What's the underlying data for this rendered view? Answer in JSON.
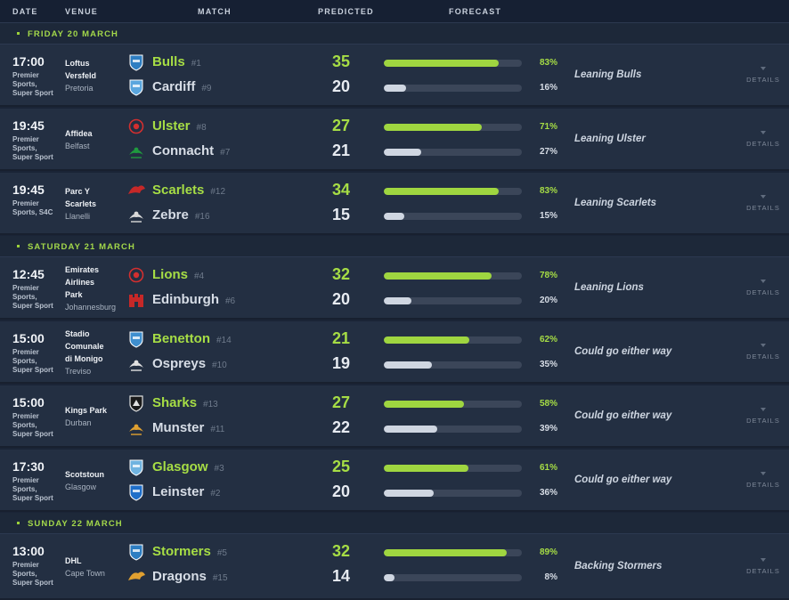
{
  "columns": [
    "DATE",
    "VENUE",
    "MATCH",
    "PREDICTED",
    "FORECAST"
  ],
  "details_label": "DETAILS",
  "days": [
    {
      "label": "FRIDAY 20 MARCH",
      "matches": [
        {
          "time": "17:00",
          "broadcast": [
            "Premier",
            "Sports,",
            "Super Sport"
          ],
          "venue": [
            "Loftus",
            "Versfeld"
          ],
          "city": "Pretoria",
          "home": {
            "name": "Bulls",
            "rank": "#1",
            "score": "35",
            "pct": 83,
            "pct_label": "83%",
            "logo": "bulls-logo",
            "color": "#2e7ec2"
          },
          "away": {
            "name": "Cardiff",
            "rank": "#9",
            "score": "20",
            "pct": 16,
            "pct_label": "16%",
            "logo": "cardiff-logo",
            "color": "#5aa6de"
          },
          "forecast": "Leaning Bulls"
        },
        {
          "time": "19:45",
          "broadcast": [
            "Premier",
            "Sports,",
            "Super Sport"
          ],
          "venue": [
            "Affidea"
          ],
          "city": "Belfast",
          "home": {
            "name": "Ulster",
            "rank": "#8",
            "score": "27",
            "pct": 71,
            "pct_label": "71%",
            "logo": "ulster-logo",
            "color": "#d32f2f"
          },
          "away": {
            "name": "Connacht",
            "rank": "#7",
            "score": "21",
            "pct": 27,
            "pct_label": "27%",
            "logo": "connacht-logo",
            "color": "#1f9a3e"
          },
          "forecast": "Leaning Ulster"
        },
        {
          "time": "19:45",
          "broadcast": [
            "Premier",
            "Sports, S4C"
          ],
          "venue": [
            "Parc Y",
            "Scarlets"
          ],
          "city": "Llanelli",
          "home": {
            "name": "Scarlets",
            "rank": "#12",
            "score": "34",
            "pct": 83,
            "pct_label": "83%",
            "logo": "scarlets-logo",
            "color": "#c62828"
          },
          "away": {
            "name": "Zebre",
            "rank": "#16",
            "score": "15",
            "pct": 15,
            "pct_label": "15%",
            "logo": "zebre-logo",
            "color": "#d8d8d8"
          },
          "forecast": "Leaning Scarlets"
        }
      ]
    },
    {
      "label": "SATURDAY 21 MARCH",
      "matches": [
        {
          "time": "12:45",
          "broadcast": [
            "Premier",
            "Sports,",
            "Super Sport"
          ],
          "venue": [
            "Emirates",
            "Airlines",
            "Park"
          ],
          "city": "Johannesburg",
          "home": {
            "name": "Lions",
            "rank": "#4",
            "score": "32",
            "pct": 78,
            "pct_label": "78%",
            "logo": "lions-logo",
            "color": "#d32f2f"
          },
          "away": {
            "name": "Edinburgh",
            "rank": "#6",
            "score": "20",
            "pct": 20,
            "pct_label": "20%",
            "logo": "edinburgh-logo",
            "color": "#c62828"
          },
          "forecast": "Leaning Lions"
        },
        {
          "time": "15:00",
          "broadcast": [
            "Premier",
            "Sports,",
            "Super Sport"
          ],
          "venue": [
            "Stadio",
            "Comunale",
            "di Monigo"
          ],
          "city": "Treviso",
          "home": {
            "name": "Benetton",
            "rank": "#14",
            "score": "21",
            "pct": 62,
            "pct_label": "62%",
            "logo": "benetton-logo",
            "color": "#3f8fcf"
          },
          "away": {
            "name": "Ospreys",
            "rank": "#10",
            "score": "19",
            "pct": 35,
            "pct_label": "35%",
            "logo": "ospreys-logo",
            "color": "#e0e0e0"
          },
          "forecast": "Could go either way"
        },
        {
          "time": "15:00",
          "broadcast": [
            "Premier",
            "Sports,",
            "Super Sport"
          ],
          "venue": [
            "Kings Park"
          ],
          "city": "Durban",
          "home": {
            "name": "Sharks",
            "rank": "#13",
            "score": "27",
            "pct": 58,
            "pct_label": "58%",
            "logo": "sharks-logo",
            "color": "#e0e0e0"
          },
          "away": {
            "name": "Munster",
            "rank": "#11",
            "score": "22",
            "pct": 39,
            "pct_label": "39%",
            "logo": "munster-logo",
            "color": "#e0a030"
          },
          "forecast": "Could go either way"
        },
        {
          "time": "17:30",
          "broadcast": [
            "Premier",
            "Sports,",
            "Super Sport"
          ],
          "venue": [
            "Scotstoun"
          ],
          "city": "Glasgow",
          "home": {
            "name": "Glasgow",
            "rank": "#3",
            "score": "25",
            "pct": 61,
            "pct_label": "61%",
            "logo": "glasgow-logo",
            "color": "#6fb3e0"
          },
          "away": {
            "name": "Leinster",
            "rank": "#2",
            "score": "20",
            "pct": 36,
            "pct_label": "36%",
            "logo": "leinster-logo",
            "color": "#1f6fc9"
          },
          "forecast": "Could go either way"
        }
      ]
    },
    {
      "label": "SUNDAY 22 MARCH",
      "matches": [
        {
          "time": "13:00",
          "broadcast": [
            "Premier",
            "Sports,",
            "Super Sport"
          ],
          "venue": [
            "DHL"
          ],
          "city": "Cape Town",
          "home": {
            "name": "Stormers",
            "rank": "#5",
            "score": "32",
            "pct": 89,
            "pct_label": "89%",
            "logo": "stormers-logo",
            "color": "#2e7ec2"
          },
          "away": {
            "name": "Dragons",
            "rank": "#15",
            "score": "14",
            "pct": 8,
            "pct_label": "8%",
            "logo": "dragons-logo",
            "color": "#e0a030"
          },
          "forecast": "Backing Stormers"
        }
      ]
    }
  ]
}
